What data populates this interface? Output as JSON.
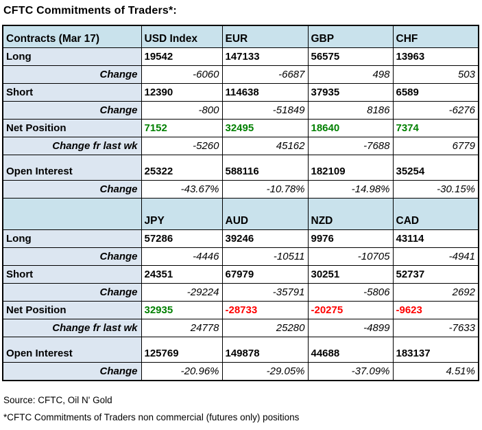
{
  "title": "CFTC Commitments of Traders*:",
  "colors": {
    "header_bg": "#c9e2ec",
    "label_bg": "#dce6f1",
    "positive": "#008000",
    "negative": "#ff0000",
    "border": "#000000"
  },
  "table": {
    "sections": [
      {
        "headers": [
          "Contracts (Mar 17)",
          "USD Index",
          "EUR",
          "GBP",
          "CHF"
        ],
        "rows": [
          {
            "label": "Long",
            "kind": "value",
            "values": [
              "19542",
              "147133",
              "56575",
              "13963"
            ]
          },
          {
            "label": "Change",
            "kind": "change",
            "values": [
              "-6060",
              "-6687",
              "498",
              "503"
            ]
          },
          {
            "label": "Short",
            "kind": "value",
            "values": [
              "12390",
              "114638",
              "37935",
              "6589"
            ]
          },
          {
            "label": "Change",
            "kind": "change",
            "values": [
              "-800",
              "-51849",
              "8186",
              "-6276"
            ]
          },
          {
            "label": "Net Position",
            "kind": "net",
            "values": [
              "7152",
              "32495",
              "18640",
              "7374"
            ]
          },
          {
            "label": "Change fr last wk",
            "kind": "change",
            "values": [
              "-5260",
              "45162",
              "-7688",
              "6779"
            ]
          },
          {
            "label": "Open Interest",
            "kind": "open",
            "values": [
              "25322",
              "588116",
              "182109",
              "35254"
            ]
          },
          {
            "label": "Change",
            "kind": "change",
            "values": [
              "-43.67%",
              "-10.78%",
              "-14.98%",
              "-30.15%"
            ]
          }
        ]
      },
      {
        "headers": [
          "",
          "JPY",
          "AUD",
          "NZD",
          "CAD"
        ],
        "rows": [
          {
            "label": "Long",
            "kind": "value",
            "values": [
              "57286",
              "39246",
              "9976",
              "43114"
            ]
          },
          {
            "label": "Change",
            "kind": "change",
            "values": [
              "-4446",
              "-10511",
              "-10705",
              "-4941"
            ]
          },
          {
            "label": "Short",
            "kind": "value",
            "values": [
              "24351",
              "67979",
              "30251",
              "52737"
            ]
          },
          {
            "label": "Change",
            "kind": "change",
            "values": [
              "-29224",
              "-35791",
              "-5806",
              "2692"
            ]
          },
          {
            "label": "Net Position",
            "kind": "net",
            "values": [
              "32935",
              "-28733",
              "-20275",
              "-9623"
            ]
          },
          {
            "label": "Change fr last wk",
            "kind": "change",
            "values": [
              "24778",
              "25280",
              "-4899",
              "-7633"
            ]
          },
          {
            "label": "Open Interest",
            "kind": "open",
            "values": [
              "125769",
              "149878",
              "44688",
              "183137"
            ]
          },
          {
            "label": "Change",
            "kind": "change",
            "values": [
              "-20.96%",
              "-29.05%",
              "-37.09%",
              "4.51%"
            ]
          }
        ]
      }
    ]
  },
  "footer": {
    "source": "Source: CFTC, Oil N' Gold",
    "note": "*CFTC Commitments of Traders non commercial (futures only) positions"
  },
  "chart_data": {
    "type": "table",
    "title": "CFTC Commitments of Traders*:",
    "note": "*CFTC Commitments of Traders non commercial (futures only) positions",
    "source": "CFTC, Oil N' Gold",
    "tables": [
      {
        "columns": [
          "Contracts (Mar 17)",
          "USD Index",
          "EUR",
          "GBP",
          "CHF"
        ],
        "rows": [
          [
            "Long",
            19542,
            147133,
            56575,
            13963
          ],
          [
            "Change",
            -6060,
            -6687,
            498,
            503
          ],
          [
            "Short",
            12390,
            114638,
            37935,
            6589
          ],
          [
            "Change",
            -800,
            -51849,
            8186,
            -6276
          ],
          [
            "Net Position",
            7152,
            32495,
            18640,
            7374
          ],
          [
            "Change fr last wk",
            -5260,
            45162,
            -7688,
            6779
          ],
          [
            "Open Interest",
            25322,
            588116,
            182109,
            35254
          ],
          [
            "Change %",
            -43.67,
            -10.78,
            -14.98,
            -30.15
          ]
        ]
      },
      {
        "columns": [
          "",
          "JPY",
          "AUD",
          "NZD",
          "CAD"
        ],
        "rows": [
          [
            "Long",
            57286,
            39246,
            9976,
            43114
          ],
          [
            "Change",
            -4446,
            -10511,
            -10705,
            -4941
          ],
          [
            "Short",
            24351,
            67979,
            30251,
            52737
          ],
          [
            "Change",
            -29224,
            -35791,
            -5806,
            2692
          ],
          [
            "Net Position",
            32935,
            -28733,
            -20275,
            -9623
          ],
          [
            "Change fr last wk",
            24778,
            25280,
            -4899,
            -7633
          ],
          [
            "Open Interest",
            125769,
            149878,
            44688,
            183137
          ],
          [
            "Change %",
            -20.96,
            -29.05,
            -37.09,
            4.51
          ]
        ]
      }
    ]
  }
}
